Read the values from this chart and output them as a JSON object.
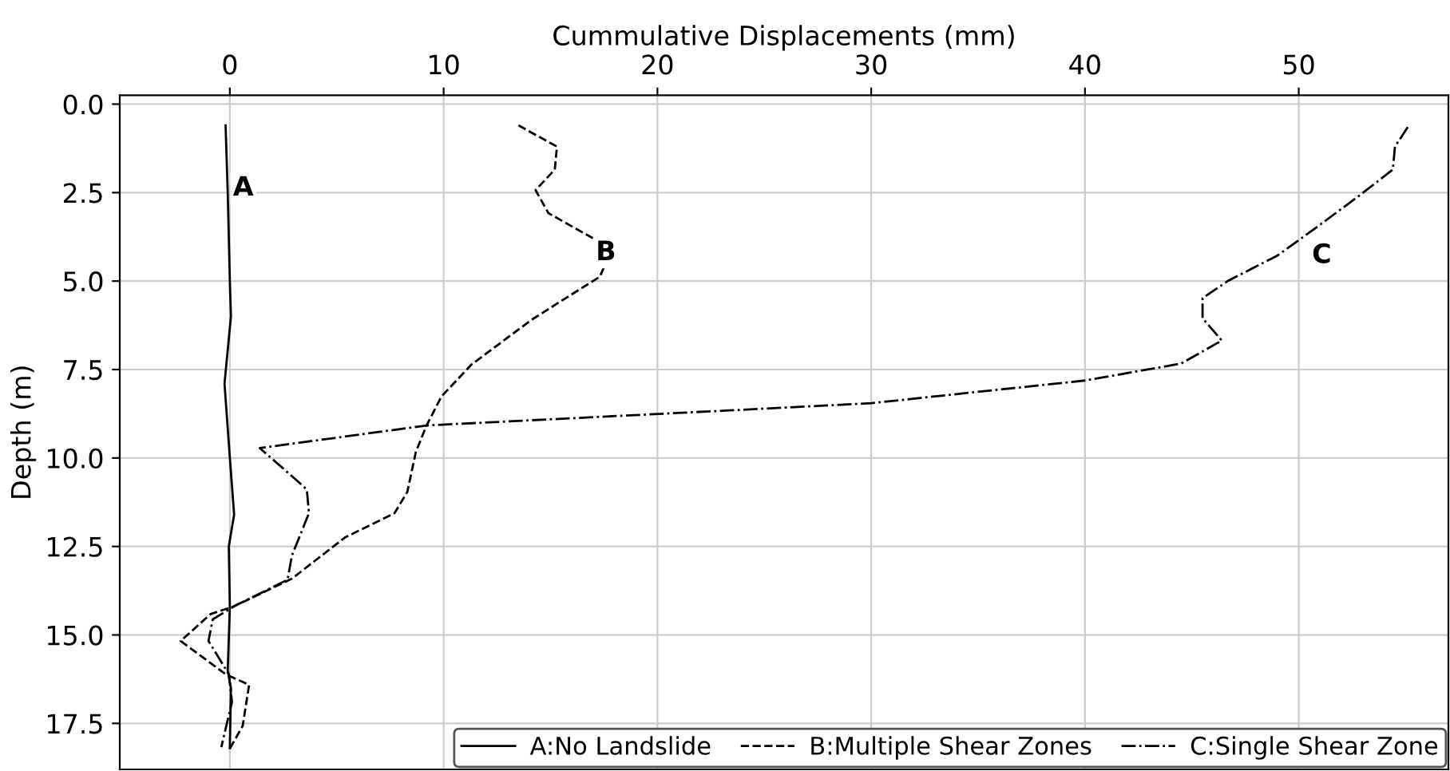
{
  "chart_data": {
    "type": "line",
    "xlabel": "Cummulative Displacements (mm)",
    "ylabel": "Depth (m)",
    "xlim": [
      -5.15,
      57
    ],
    "ylim": [
      18.8,
      -0.25
    ],
    "xticks": [
      0,
      10,
      20,
      30,
      40,
      50
    ],
    "yticks": [
      {
        "value": 0,
        "label": "0.0"
      },
      {
        "value": 2.5,
        "label": "2.5"
      },
      {
        "value": 5,
        "label": "5.0"
      },
      {
        "value": 7.5,
        "label": "7.5"
      },
      {
        "value": 10,
        "label": "10.0"
      },
      {
        "value": 12.5,
        "label": "12.5"
      },
      {
        "value": 15,
        "label": "15.0"
      },
      {
        "value": 17.5,
        "label": "17.5"
      }
    ],
    "grid": true,
    "legend": "bottom right",
    "series": [
      {
        "name": "A:No Landslide",
        "color": "#000000",
        "line_style": "solid",
        "x": [
          -0.2,
          -0.1,
          0,
          0.05,
          -0.25,
          0,
          0.2,
          -0.05,
          0,
          -0.1,
          0.05,
          0
        ],
        "values": [
          0.6,
          2.5,
          5.0,
          6.0,
          7.9,
          10.0,
          11.6,
          12.5,
          14.2,
          16.0,
          16.5,
          18.2
        ]
      },
      {
        "name": "B:Multiple Shear Zones",
        "color": "#000000",
        "line_style": "dashed",
        "x": [
          13.5,
          15.3,
          15.2,
          14.3,
          14.9,
          17.1,
          17.8,
          17.3,
          15.4,
          14.1,
          11.3,
          9.9,
          9.2,
          8.7,
          8.3,
          7.7,
          5.4,
          2.9,
          0.2,
          -0.9,
          -2.3,
          -0.2,
          0.9,
          0.6,
          0
        ],
        "values": [
          0.6,
          1.2,
          1.85,
          2.43,
          3.08,
          3.83,
          4.2,
          4.88,
          5.6,
          6.1,
          7.36,
          8.26,
          9.08,
          9.83,
          10.96,
          11.56,
          12.24,
          13.41,
          14.19,
          14.41,
          15.17,
          16.11,
          16.41,
          17.57,
          18.21
        ]
      },
      {
        "name": "C:Single Shear Zone",
        "color": "#000000",
        "line_style": "dashdot",
        "x": [
          55.1,
          54.5,
          54.4,
          52.8,
          50.9,
          49.0,
          46.7,
          45.5,
          45.5,
          46.4,
          44.5,
          40.0,
          30.0,
          23.2,
          9.2,
          1.4,
          2.9,
          3.6,
          3.7,
          2.9,
          2.7,
          0.2,
          -0.8,
          -1.0,
          -0.05,
          0.1,
          -0.4
        ],
        "values": [
          0.65,
          1.2,
          1.85,
          2.6,
          3.45,
          4.28,
          4.99,
          5.48,
          6.05,
          6.68,
          7.33,
          7.81,
          8.45,
          8.66,
          9.08,
          9.72,
          10.51,
          10.89,
          11.56,
          12.76,
          13.44,
          14.19,
          14.56,
          15.17,
          16.11,
          16.89,
          18.17
        ]
      }
    ],
    "annotations": [
      {
        "text": "A",
        "x": -0.1,
        "y": 2.5
      },
      {
        "text": "B",
        "x": 17.8,
        "y": 4.2
      },
      {
        "text": "C",
        "x": 49.0,
        "y": 4.28
      }
    ]
  }
}
